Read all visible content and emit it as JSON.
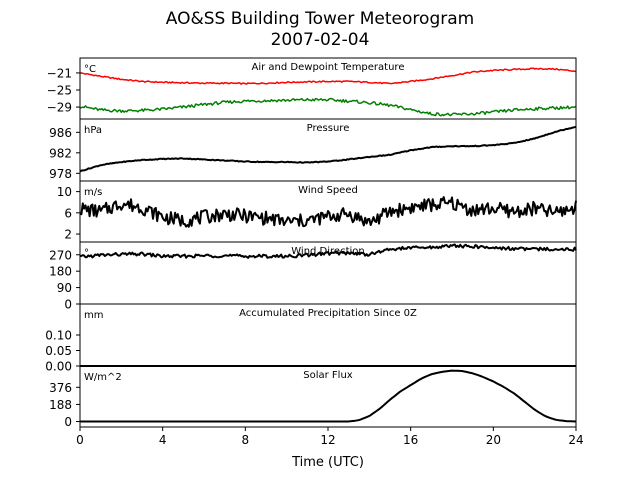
{
  "title": "AO&SS Building Tower Meteorogram",
  "subtitle": "2007-02-04",
  "xlabel": "Time (UTC)",
  "colors": {
    "temperature": "#ff0000",
    "dewpoint": "#008000",
    "other": "#000000"
  },
  "chart_data": [
    {
      "type": "line",
      "panel_title": "Air and Dewpoint Temperature",
      "unit": "°C",
      "yticks": [
        "−21",
        "−25",
        "−29"
      ],
      "ytick_values": [
        -21,
        -25,
        -29
      ],
      "ylim": [
        -31.8,
        -17.5
      ],
      "xlim": [
        0,
        24
      ],
      "series": [
        {
          "key": "temperature",
          "x": [
            0,
            1,
            2,
            3,
            4,
            5,
            6,
            7,
            8,
            9,
            10,
            11,
            12,
            13,
            14,
            15,
            16,
            17,
            18,
            19,
            20,
            21,
            22,
            23,
            24
          ],
          "values": [
            -21,
            -21.8,
            -22.5,
            -23,
            -23.2,
            -23.3,
            -23.4,
            -23.4,
            -23.5,
            -23.4,
            -23.2,
            -23.1,
            -23,
            -23,
            -23.2,
            -23.5,
            -23,
            -22.4,
            -21.6,
            -20.8,
            -20.4,
            -20.2,
            -20,
            -20.1,
            -20.6
          ]
        },
        {
          "key": "dewpoint",
          "x": [
            0,
            1,
            2,
            3,
            4,
            5,
            6,
            7,
            8,
            9,
            10,
            11,
            12,
            13,
            14,
            15,
            16,
            17,
            18,
            19,
            20,
            21,
            22,
            23,
            24
          ],
          "values": [
            -28.8,
            -29.7,
            -29.9,
            -29.8,
            -29.5,
            -29,
            -28.4,
            -27.9,
            -27.6,
            -27.5,
            -27.4,
            -27.3,
            -27.3,
            -27.6,
            -28,
            -28.6,
            -29.6,
            -30.6,
            -30.8,
            -30.6,
            -30.2,
            -29.7,
            -29.4,
            -29.2,
            -29.0
          ]
        }
      ]
    },
    {
      "type": "line",
      "panel_title": "Pressure",
      "unit": "hPa",
      "yticks": [
        "986",
        "982",
        "978"
      ],
      "ytick_values": [
        986,
        982,
        978
      ],
      "ylim": [
        976.5,
        988.6
      ],
      "xlim": [
        0,
        24
      ],
      "series": [
        {
          "key": "pressure",
          "x": [
            0,
            1,
            2,
            3,
            4,
            5,
            6,
            7,
            8,
            9,
            10,
            11,
            12,
            13,
            14,
            15,
            16,
            17,
            18,
            19,
            20,
            21,
            22,
            23,
            24
          ],
          "values": [
            978.4,
            979.6,
            980.2,
            980.6,
            980.8,
            980.9,
            980.7,
            980.5,
            980.3,
            980.2,
            980.2,
            980.1,
            980.3,
            980.7,
            981.2,
            981.6,
            982.5,
            983.1,
            983.3,
            983.3,
            983.5,
            983.9,
            984.8,
            986.1,
            987.1
          ]
        }
      ]
    },
    {
      "type": "line",
      "panel_title": "Wind Speed",
      "unit": "m/s",
      "yticks": [
        "10",
        "6",
        "2"
      ],
      "ytick_values": [
        10,
        6,
        2
      ],
      "ylim": [
        0.5,
        12
      ],
      "xlim": [
        0,
        24
      ],
      "series": [
        {
          "key": "wind_speed",
          "x": [
            0,
            1,
            2,
            3,
            4,
            5,
            6,
            7,
            8,
            9,
            10,
            11,
            12,
            13,
            14,
            15,
            16,
            17,
            18,
            19,
            20,
            21,
            22,
            23,
            24
          ],
          "values": [
            6.8,
            6.2,
            7.8,
            7,
            5.2,
            4.5,
            5.2,
            5.8,
            5.4,
            5,
            4.3,
            4.5,
            5.3,
            5.8,
            4.2,
            6.2,
            7,
            7.5,
            7.8,
            6.5,
            6.8,
            6.2,
            6.8,
            6,
            7
          ]
        }
      ]
    },
    {
      "type": "line",
      "panel_title": "Wind Direction",
      "unit": "°",
      "yticks": [
        "270",
        "180",
        "90",
        "0"
      ],
      "ytick_values": [
        270,
        180,
        90,
        0
      ],
      "ylim": [
        0,
        340
      ],
      "xlim": [
        0,
        24
      ],
      "series": [
        {
          "key": "wind_direction",
          "x": [
            0,
            1,
            2,
            3,
            4,
            5,
            6,
            7,
            8,
            9,
            10,
            11,
            12,
            13,
            14,
            15,
            16,
            17,
            18,
            19,
            20,
            21,
            22,
            23,
            24
          ],
          "values": [
            258,
            268,
            272,
            274,
            262,
            262,
            265,
            265,
            262,
            262,
            262,
            268,
            278,
            280,
            272,
            300,
            308,
            310,
            320,
            315,
            308,
            304,
            300,
            302,
            300
          ]
        }
      ]
    },
    {
      "type": "line",
      "panel_title": "Accumulated Precipitation Since 0Z",
      "unit": "mm",
      "yticks": [
        "0.10",
        "0.05",
        "0.00"
      ],
      "ytick_values": [
        0.1,
        0.05,
        0.0
      ],
      "ylim": [
        0,
        0.2
      ],
      "xlim": [
        0,
        24
      ],
      "series": [
        {
          "key": "precipitation",
          "x": [
            0,
            24
          ],
          "values": [
            0,
            0
          ]
        }
      ]
    },
    {
      "type": "line",
      "panel_title": "Solar Flux",
      "unit": "W/m^2",
      "yticks": [
        "376",
        "188",
        "0"
      ],
      "ytick_values": [
        376,
        188,
        0
      ],
      "ylim": [
        -60,
        610
      ],
      "xlim": [
        0,
        24
      ],
      "series": [
        {
          "key": "solar_flux",
          "x": [
            0,
            2,
            4,
            6,
            8,
            10,
            12,
            13,
            13.5,
            14,
            14.5,
            15,
            15.5,
            16,
            16.5,
            17,
            17.5,
            18,
            18.5,
            19,
            19.5,
            20,
            20.5,
            21,
            21.5,
            22,
            22.5,
            23,
            23.5,
            24
          ],
          "values": [
            0,
            0,
            0,
            0,
            0,
            0,
            0,
            0,
            15,
            60,
            140,
            240,
            330,
            400,
            470,
            520,
            545,
            560,
            555,
            530,
            490,
            440,
            380,
            310,
            220,
            130,
            60,
            20,
            5,
            0
          ]
        }
      ]
    }
  ],
  "xticks": [
    "0",
    "4",
    "8",
    "12",
    "16",
    "20",
    "24"
  ],
  "xtick_values": [
    0,
    4,
    8,
    12,
    16,
    20,
    24
  ]
}
